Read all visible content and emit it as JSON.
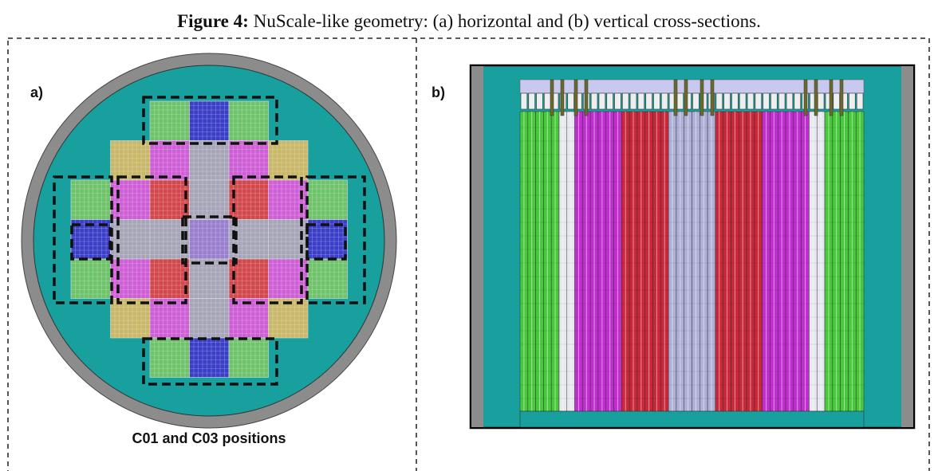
{
  "caption": {
    "label": "Figure 4:",
    "text": "NuScale-like geometry: (a) horizontal and (b) vertical cross-sections."
  },
  "panels": [
    {
      "label": "a)",
      "caption": "C01 and C03 positions"
    },
    {
      "label": "b)"
    }
  ]
}
